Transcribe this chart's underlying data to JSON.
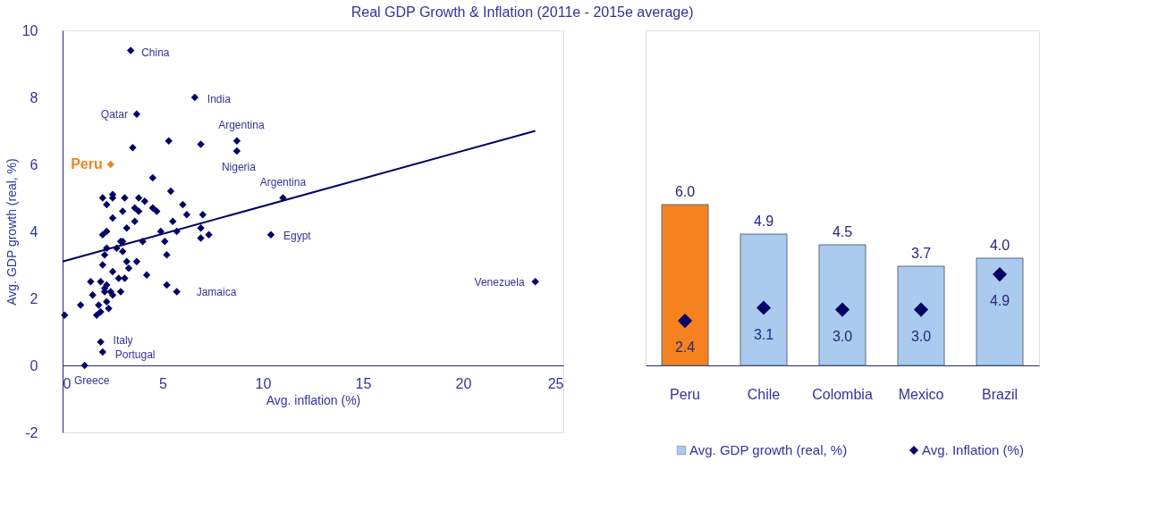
{
  "chart_data": [
    {
      "type": "scatter",
      "title": "Real GDP Growth & Inflation (2011e - 2015e average)",
      "xlabel": "Avg. inflation (%)",
      "ylabel": "Avg. GDP growth (real, %)",
      "xlim": [
        0,
        25
      ],
      "xticks": [
        0,
        5,
        10,
        15,
        20,
        25
      ],
      "ylim": [
        -2,
        10
      ],
      "yticks": [
        -2,
        0,
        2,
        4,
        6,
        8,
        10
      ],
      "marker": "diamond",
      "series": [
        {
          "color": "#000066",
          "x": [
            3.4,
            6.6,
            3.7,
            8.7,
            8.7,
            11.0,
            10.4,
            23.6,
            5.7,
            1.9,
            2.0,
            1.1,
            3.5,
            5.3,
            6.9,
            4.5,
            5.4,
            2.0,
            2.5,
            2.5,
            3.1,
            3.8,
            4.1,
            2.2,
            6.0,
            3.6,
            3.8,
            4.5,
            4.7,
            3.0,
            6.2,
            7.0,
            2.5,
            3.6,
            5.5,
            3.2,
            2.0,
            2.2,
            4.9,
            5.7,
            6.9,
            6.9,
            7.3,
            2.9,
            3.0,
            4.0,
            5.1,
            2.2,
            2.7,
            3.0,
            2.1,
            5.2,
            3.2,
            3.7,
            2.0,
            2.5,
            3.3,
            4.2,
            1.4,
            1.9,
            2.8,
            3.1,
            2.2,
            2.1,
            2.4,
            2.9,
            2.5,
            1.5,
            2.1,
            5.2,
            0.9,
            1.8,
            2.2,
            2.3,
            1.9,
            1.7,
            0.1
          ],
          "values": [
            9.4,
            8.0,
            7.5,
            6.7,
            6.4,
            5.0,
            3.9,
            2.5,
            2.2,
            0.7,
            0.4,
            0.0,
            6.5,
            6.7,
            6.6,
            5.6,
            5.2,
            5.0,
            5.1,
            5.0,
            5.0,
            5.0,
            4.9,
            4.8,
            4.8,
            4.7,
            4.6,
            4.7,
            4.6,
            4.6,
            4.5,
            4.5,
            4.4,
            4.3,
            4.3,
            4.1,
            3.9,
            4.0,
            4.0,
            4.0,
            4.1,
            3.8,
            3.9,
            3.7,
            3.7,
            3.7,
            3.7,
            3.5,
            3.5,
            3.4,
            3.3,
            3.3,
            3.1,
            3.1,
            3.0,
            2.8,
            2.9,
            2.7,
            2.5,
            2.5,
            2.6,
            2.6,
            2.4,
            2.3,
            2.2,
            2.2,
            2.1,
            2.1,
            2.2,
            2.4,
            1.8,
            1.8,
            1.9,
            1.7,
            1.6,
            1.5,
            1.5
          ]
        },
        {
          "name": "Peru",
          "color": "#f5821f",
          "x": [
            2.4
          ],
          "values": [
            6.0
          ]
        },
        {
          "type": "line",
          "marker": "none",
          "color": "#000066",
          "x": [
            0,
            23.6
          ],
          "values": [
            3.1,
            7.0
          ]
        }
      ],
      "annotations": [
        {
          "text": "China",
          "x": 3.4,
          "y": 9.4
        },
        {
          "text": "India",
          "x": 6.6,
          "y": 8.0
        },
        {
          "text": "Qatar",
          "x": 3.7,
          "y": 7.5
        },
        {
          "text": "Argentina",
          "x": 8.7,
          "y": 6.7
        },
        {
          "text": "Nigeria",
          "x": 8.7,
          "y": 6.4
        },
        {
          "text": "Argentina",
          "x": 11.0,
          "y": 5.0
        },
        {
          "text": "Egypt",
          "x": 10.4,
          "y": 3.9
        },
        {
          "text": "Venezuela",
          "x": 23.6,
          "y": 2.5
        },
        {
          "text": "Jamaica",
          "x": 5.7,
          "y": 2.2
        },
        {
          "text": "Italy",
          "x": 1.9,
          "y": 0.7
        },
        {
          "text": "Portugal",
          "x": 2.0,
          "y": 0.4
        },
        {
          "text": "Greece",
          "x": 1.1,
          "y": 0.0
        }
      ]
    },
    {
      "type": "bar",
      "categories": [
        "Peru",
        "Chile",
        "Colombia",
        "Mexico",
        "Brazil"
      ],
      "tick_labels": "x",
      "legend": "bottom",
      "series": [
        {
          "name": "Avg. GDP growth (real, %)",
          "color": "#aacbee",
          "colors": [
            "#f5821f",
            "#aacbee",
            "#aacbee",
            "#aacbee",
            "#aacbee"
          ],
          "values": [
            6.0,
            4.9,
            4.5,
            3.7,
            4.0
          ],
          "value_labels": [
            "6.0",
            "4.9",
            "4.5",
            "3.7",
            "4.0"
          ]
        },
        {
          "name": "Avg. Inflation (%)",
          "type": "scatter",
          "axis": "y2",
          "marker": "diamond",
          "color": "#000066",
          "values": [
            2.4,
            3.1,
            3.0,
            3.0,
            4.9
          ],
          "value_labels": [
            "2.4",
            "3.1",
            "3.0",
            "3.0",
            "4.9"
          ]
        }
      ]
    }
  ]
}
